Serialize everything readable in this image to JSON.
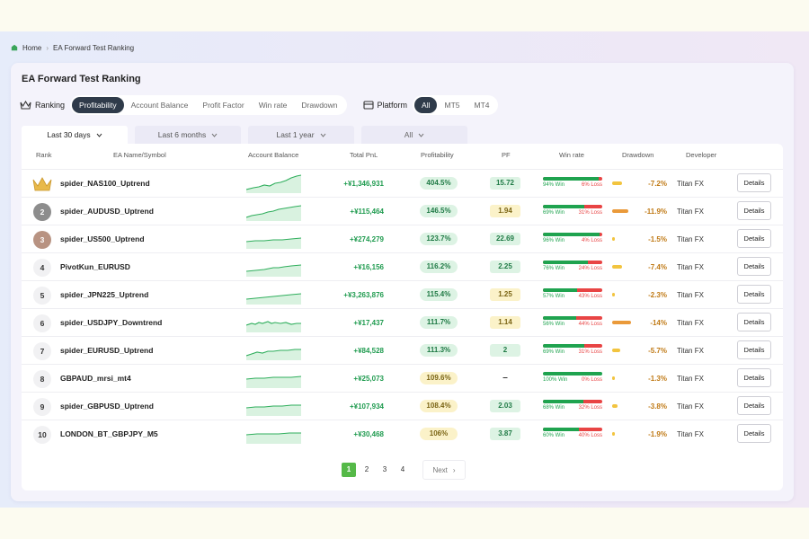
{
  "breadcrumb": {
    "home": "Home",
    "current": "EA Forward Test Ranking"
  },
  "page_title": "EA Forward Test Ranking",
  "ranking": {
    "label": "Ranking",
    "tabs": [
      "Profitability",
      "Account Balance",
      "Profit Factor",
      "Win rate",
      "Drawdown"
    ],
    "active": "Profitability"
  },
  "platform": {
    "label": "Platform",
    "tabs": [
      "All",
      "MT5",
      "MT4"
    ],
    "active": "All"
  },
  "periods": [
    "Last 30 days",
    "Last 6 months",
    "Last 1 year",
    "All"
  ],
  "active_period": "Last 30 days",
  "columns": [
    "Rank",
    "EA Name/Symbol",
    "Account Balance",
    "Total PnL",
    "Profitability",
    "PF",
    "Win rate",
    "Drawdown",
    "Developer"
  ],
  "rows": [
    {
      "rank": "1",
      "name": "spider_NAS100_Uptrend",
      "pnl": "+¥1,346,931",
      "profitability": "404.5%",
      "pf": "15.72",
      "win": 94,
      "win_label": "94% Win",
      "loss_label": "6% Loss",
      "drawdown": "-7.2%",
      "dd_level": 7.2,
      "developer": "Titan FX",
      "details": "Details"
    },
    {
      "rank": "2",
      "name": "spider_AUDUSD_Uptrend",
      "pnl": "+¥115,464",
      "profitability": "146.5%",
      "pf": "1.94",
      "win": 69,
      "win_label": "69% Win",
      "loss_label": "31% Loss",
      "drawdown": "-11.9%",
      "dd_level": 11.9,
      "developer": "Titan FX",
      "details": "Details"
    },
    {
      "rank": "3",
      "name": "spider_US500_Uptrend",
      "pnl": "+¥274,279",
      "profitability": "123.7%",
      "pf": "22.69",
      "win": 96,
      "win_label": "96% Win",
      "loss_label": "4% Loss",
      "drawdown": "-1.5%",
      "dd_level": 1.5,
      "developer": "Titan FX",
      "details": "Details"
    },
    {
      "rank": "4",
      "name": "PivotKun_EURUSD",
      "pnl": "+¥16,156",
      "profitability": "116.2%",
      "pf": "2.25",
      "win": 76,
      "win_label": "76% Win",
      "loss_label": "24% Loss",
      "drawdown": "-7.4%",
      "dd_level": 7.4,
      "developer": "Titan FX",
      "details": "Details"
    },
    {
      "rank": "5",
      "name": "spider_JPN225_Uptrend",
      "pnl": "+¥3,263,876",
      "profitability": "115.4%",
      "pf": "1.25",
      "win": 57,
      "win_label": "57% Win",
      "loss_label": "43% Loss",
      "drawdown": "-2.3%",
      "dd_level": 2.3,
      "developer": "Titan FX",
      "details": "Details"
    },
    {
      "rank": "6",
      "name": "spider_USDJPY_Downtrend",
      "pnl": "+¥17,437",
      "profitability": "111.7%",
      "pf": "1.14",
      "win": 56,
      "win_label": "56% Win",
      "loss_label": "44% Loss",
      "drawdown": "-14%",
      "dd_level": 14,
      "developer": "Titan FX",
      "details": "Details"
    },
    {
      "rank": "7",
      "name": "spider_EURUSD_Uptrend",
      "pnl": "+¥84,528",
      "profitability": "111.3%",
      "pf": "2",
      "win": 69,
      "win_label": "69% Win",
      "loss_label": "31% Loss",
      "drawdown": "-5.7%",
      "dd_level": 5.7,
      "developer": "Titan FX",
      "details": "Details"
    },
    {
      "rank": "8",
      "name": "GBPAUD_mrsi_mt4",
      "pnl": "+¥25,073",
      "profitability": "109.6%",
      "pf": "–",
      "win": 100,
      "win_label": "100% Win",
      "loss_label": "0% Loss",
      "drawdown": "-1.3%",
      "dd_level": 1.3,
      "developer": "Titan FX",
      "details": "Details"
    },
    {
      "rank": "9",
      "name": "spider_GBPUSD_Uptrend",
      "pnl": "+¥107,934",
      "profitability": "108.4%",
      "pf": "2.03",
      "win": 68,
      "win_label": "68% Win",
      "loss_label": "32% Loss",
      "drawdown": "-3.8%",
      "dd_level": 3.8,
      "developer": "Titan FX",
      "details": "Details"
    },
    {
      "rank": "10",
      "name": "LONDON_BT_GBPJPY_M5",
      "pnl": "+¥30,468",
      "profitability": "106%",
      "pf": "3.87",
      "win": 60,
      "win_label": "60% Win",
      "loss_label": "40% Loss",
      "drawdown": "-1.9%",
      "dd_level": 1.9,
      "developer": "Titan FX",
      "details": "Details"
    }
  ],
  "pagination": {
    "pages": [
      "1",
      "2",
      "3",
      "4"
    ],
    "active": "1",
    "next": "Next"
  },
  "colors": {
    "win": "#1fa34f",
    "loss": "#e84444",
    "accent": "#55b948",
    "dark_pill": "#2f3b4a"
  }
}
